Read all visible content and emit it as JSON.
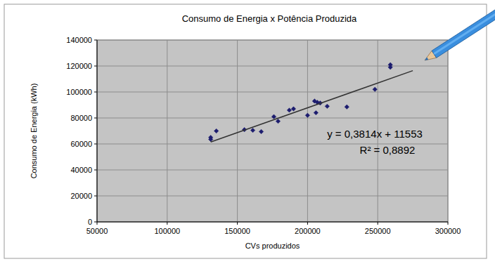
{
  "chart_data": {
    "type": "scatter",
    "title": "Consumo de Energia x Potência Produzida",
    "x_label": "CVs produzidos",
    "y_label": "Consumo de Energia (kWh)",
    "annotations": [
      "y = 0,3814x + 11553",
      "R² = 0,8892"
    ],
    "xlim": [
      50000,
      300000
    ],
    "xticks": [
      50000,
      100000,
      150000,
      200000,
      250000,
      300000
    ],
    "ylim": [
      0,
      140000
    ],
    "yticks": [
      0,
      20000,
      40000,
      60000,
      80000,
      100000,
      120000,
      140000
    ],
    "grid": true,
    "series": [
      {
        "type": "scatter",
        "color": "#1c1c6e",
        "marker": "diamond",
        "x": [
          131000,
          131000,
          135000,
          155000,
          161000,
          167000,
          176000,
          179000,
          187000,
          190000,
          200000,
          205000,
          206000,
          207000,
          209000,
          214000,
          228000,
          248000,
          259000,
          259000
        ],
        "values": [
          65000,
          63500,
          70000,
          71000,
          70500,
          69500,
          81000,
          77500,
          86000,
          87000,
          82000,
          93000,
          84000,
          92000,
          91500,
          89000,
          88500,
          102000,
          121000,
          119000
        ]
      },
      {
        "type": "line",
        "color": "#333333",
        "line_style": "solid",
        "x": [
          131000,
          275000
        ],
        "values": [
          61500,
          116400
        ]
      }
    ]
  }
}
